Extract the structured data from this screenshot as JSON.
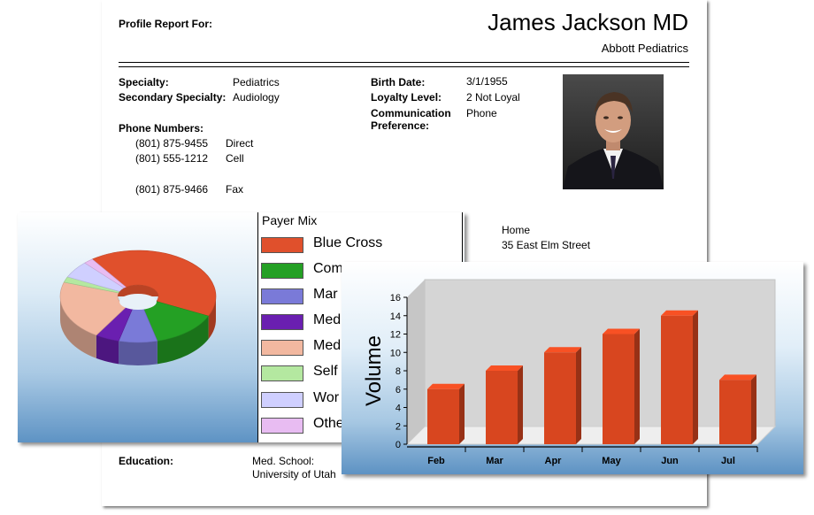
{
  "report": {
    "profile_label": "Profile Report For:",
    "name": "James Jackson MD",
    "practice": "Abbott Pediatrics",
    "specialty_label": "Specialty:",
    "specialty": "Pediatrics",
    "secondary_label": "Secondary Specialty:",
    "secondary": "Audiology",
    "birth_label": "Birth Date:",
    "birth": "3/1/1955",
    "loyalty_label": "Loyalty Level:",
    "loyalty": "2 Not Loyal",
    "comm_label_1": "Communication",
    "comm_label_2": "Preference:",
    "comm": "Phone",
    "phones_label": "Phone Numbers:",
    "phones": [
      {
        "number": "(801) 875-9455",
        "type": "Direct"
      },
      {
        "number": "(801) 555-1212",
        "type": "Cell"
      },
      {
        "number": "(801) 875-9466",
        "type": "Fax"
      }
    ],
    "address_type": "Home",
    "address_line": "35 East Elm Street",
    "education_label": "Education:",
    "edu_line1": "Med. School:",
    "edu_line2": "University of Utah"
  },
  "chart_data": [
    {
      "type": "pie",
      "title": "Payer Mix",
      "legend": [
        "Blue Cross",
        "Com",
        "Mar",
        "Med",
        "Med",
        "Self",
        "Wor",
        "Othe"
      ],
      "colors": [
        "#e0502c",
        "#24a024",
        "#7a7ad8",
        "#6a1fb0",
        "#f2b8a0",
        "#b4e8a0",
        "#cfcfff",
        "#e8bcf2"
      ],
      "values": [
        42,
        14,
        8,
        5,
        21,
        2,
        6,
        2
      ]
    },
    {
      "type": "bar",
      "categories": [
        "Feb",
        "Mar",
        "Apr",
        "May",
        "Jun",
        "Jul"
      ],
      "values": [
        6,
        8,
        10,
        12,
        14,
        7
      ],
      "ylabel": "Volume",
      "ylim": [
        0,
        16
      ],
      "yticks": [
        "0",
        "2",
        "4",
        "6",
        "8",
        "10",
        "12",
        "14",
        "16"
      ],
      "color": "#d8461f"
    }
  ]
}
